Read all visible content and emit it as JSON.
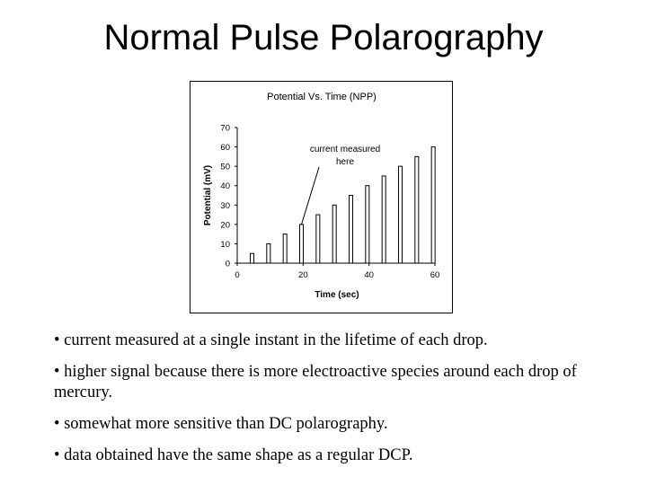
{
  "slide": {
    "title": "Normal Pulse Polarography",
    "bullets": [
      "• current measured at a single instant in the lifetime of each drop.",
      "• higher signal because there is more electroactive species around each drop of mercury.",
      "• somewhat more sensitive than DC polarography.",
      "• data obtained have the same shape as a regular DCP."
    ]
  },
  "chart_data": {
    "type": "bar",
    "title": "Potential Vs. Time (NPP)",
    "xlabel": "Time (sec)",
    "ylabel": "Potential (mV)",
    "xlim": [
      0,
      60
    ],
    "ylim": [
      0,
      70
    ],
    "xticks": [
      "0",
      "20",
      "40",
      "60"
    ],
    "yticks": [
      "0",
      "10",
      "20",
      "30",
      "40",
      "50",
      "60",
      "70"
    ],
    "x": [
      4.5,
      9.5,
      14.5,
      19.5,
      24.5,
      29.5,
      34.5,
      39.5,
      44.5,
      49.5,
      54.5,
      59.5
    ],
    "values": [
      5,
      10,
      15,
      20,
      25,
      30,
      35,
      40,
      45,
      50,
      55,
      60
    ],
    "grid": false,
    "annotation": {
      "lines": [
        "current measured",
        "here"
      ],
      "points_to_x": 19.5,
      "points_to_y": 20
    },
    "colors": {
      "bar_fill": "#ffffff",
      "bar_stroke": "#000000",
      "text": "#000000"
    }
  }
}
